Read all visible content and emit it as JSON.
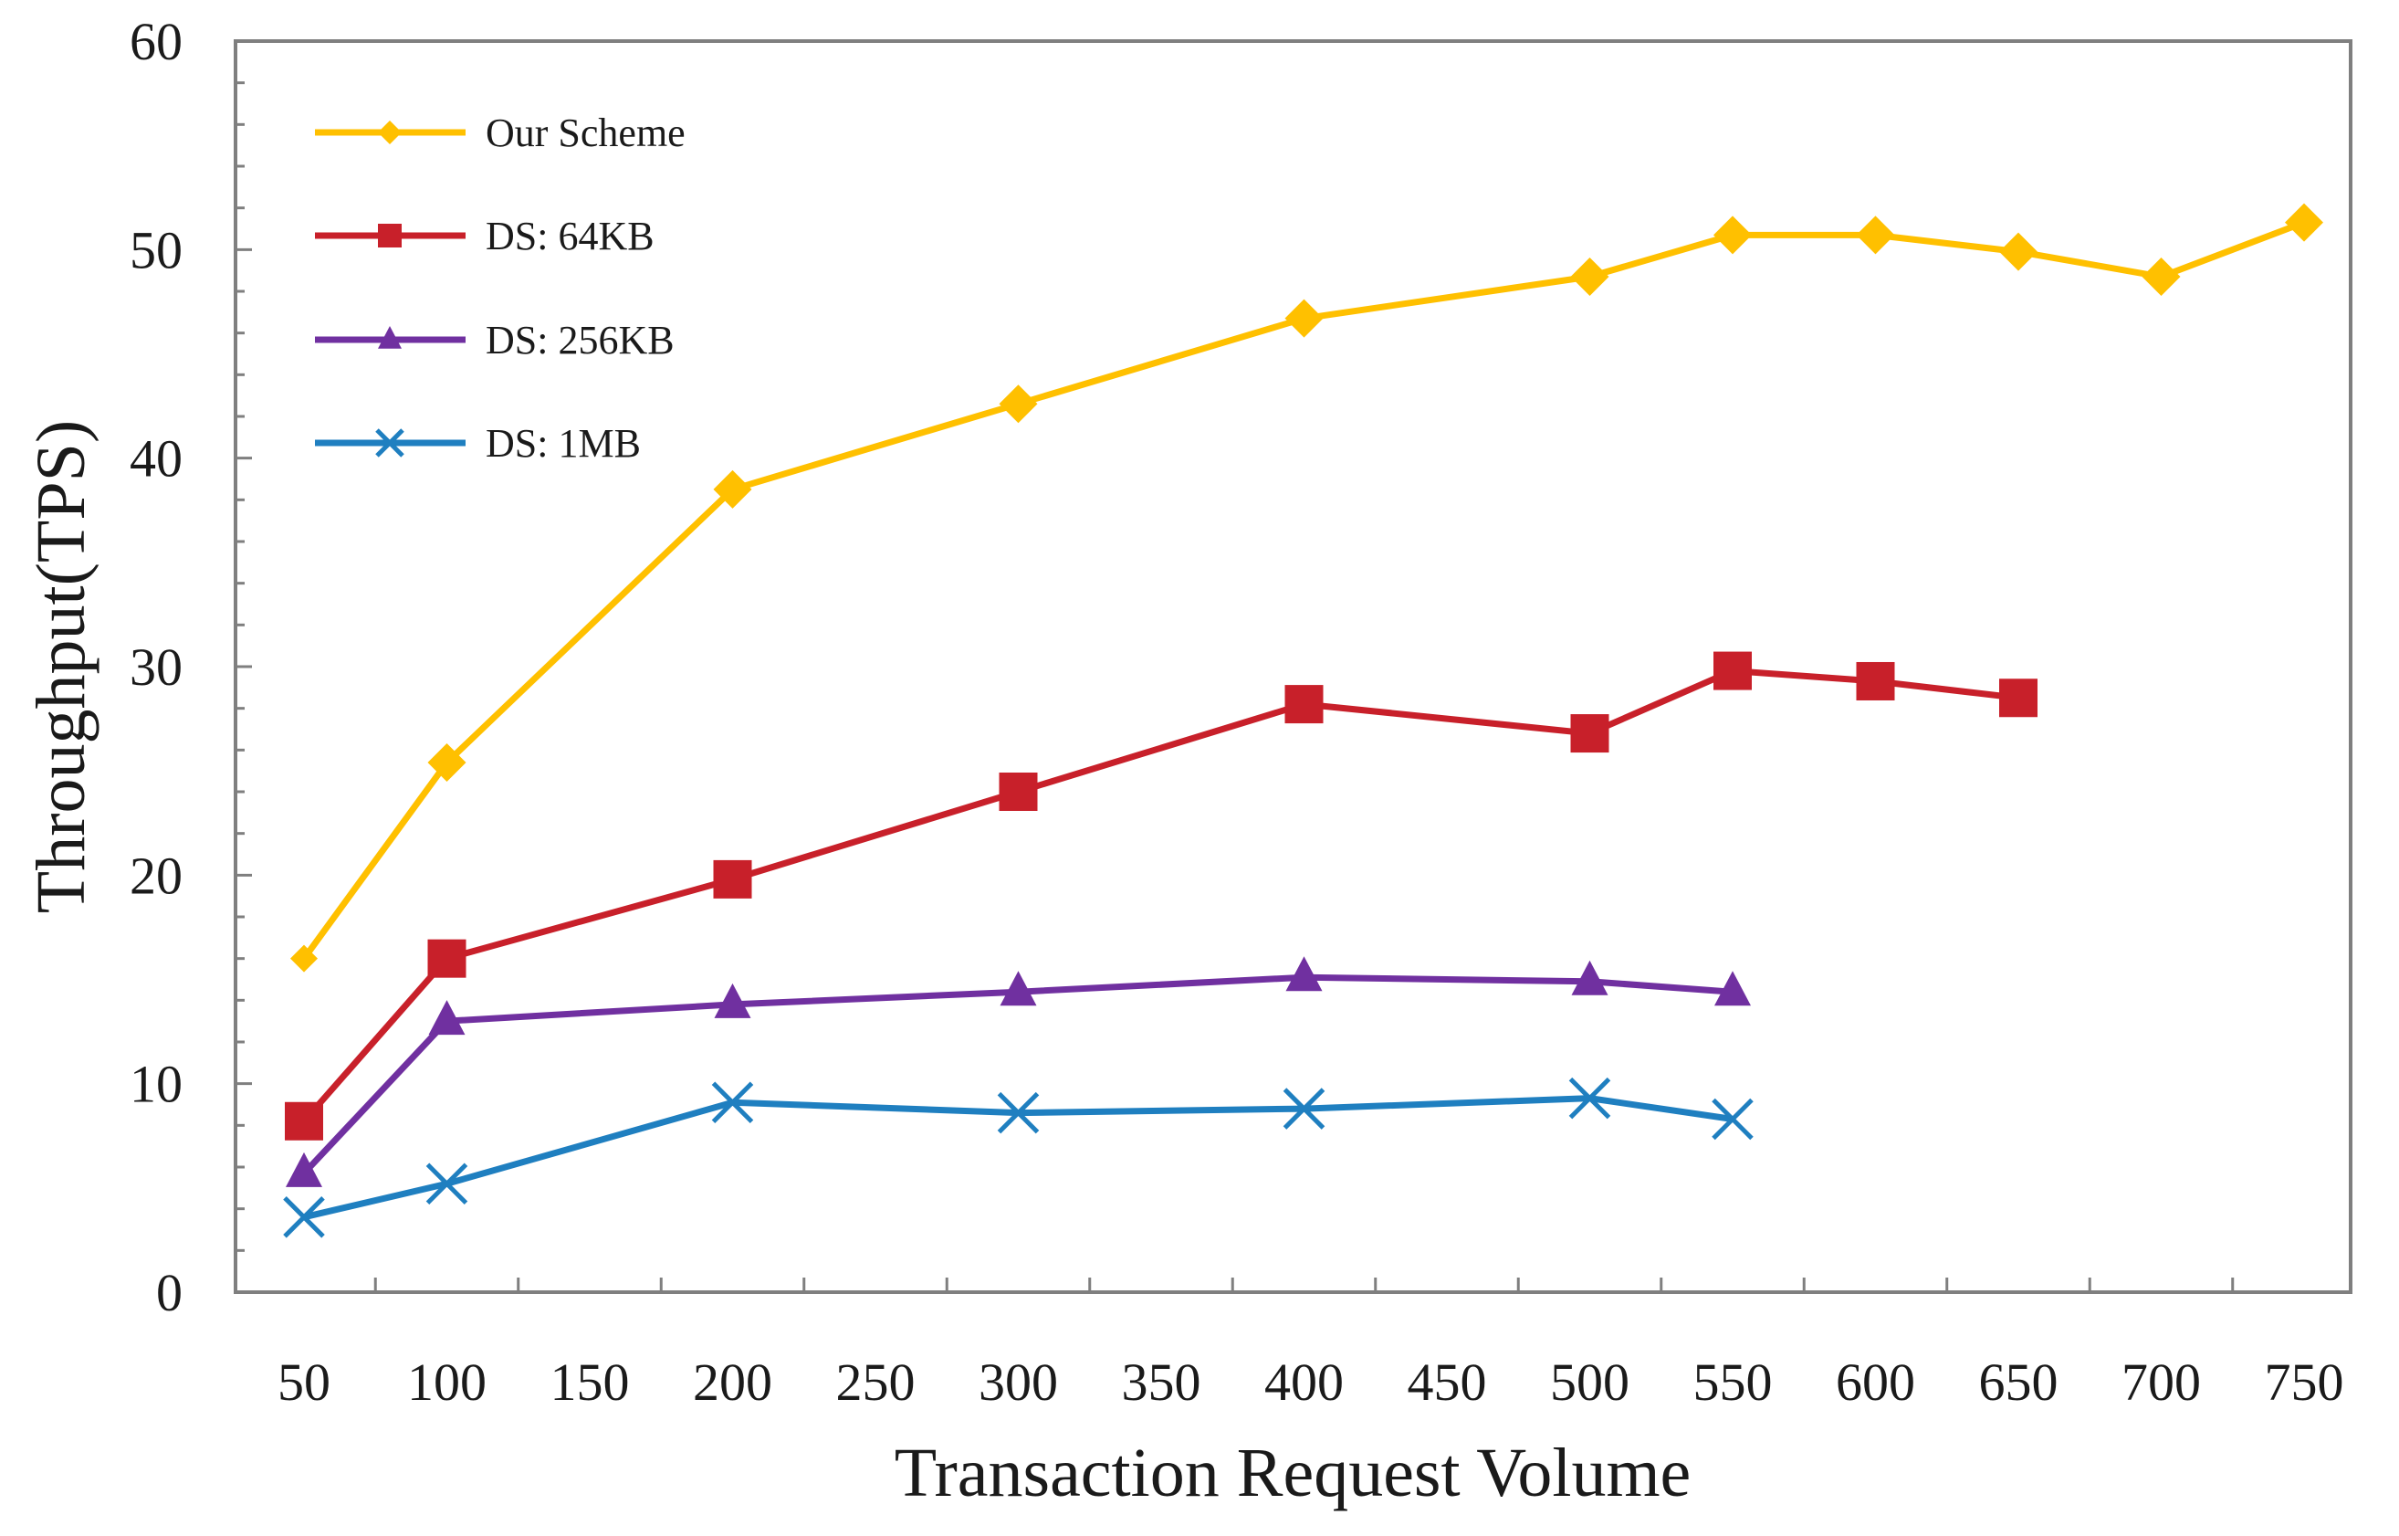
{
  "chart_data": {
    "type": "line",
    "title": "",
    "xlabel": "Transaction Request Volume",
    "ylabel": "Throughput(TPS)",
    "categories": [
      "50",
      "100",
      "150",
      "200",
      "250",
      "300",
      "350",
      "400",
      "450",
      "500",
      "550",
      "600",
      "650",
      "700",
      "750"
    ],
    "ylim": [
      0,
      60
    ],
    "yticks": [
      0,
      10,
      20,
      30,
      40,
      50,
      60
    ],
    "grid": false,
    "legend_position": "top-left",
    "series": [
      {
        "name": "Our Scheme",
        "color": "#FFC000",
        "marker": "diamond",
        "x": [
          "50",
          "100",
          "200",
          "300",
          "400",
          "500",
          "550",
          "600",
          "650",
          "700",
          "750"
        ],
        "values": [
          16,
          25.4,
          38.5,
          42.6,
          46.7,
          48.7,
          50.7,
          50.7,
          49.9,
          48.7,
          51.3
        ]
      },
      {
        "name": "DS: 64KB",
        "color": "#C8202A",
        "marker": "square",
        "x": [
          "50",
          "100",
          "200",
          "300",
          "400",
          "500",
          "550",
          "600",
          "650"
        ],
        "values": [
          8.2,
          16,
          19.8,
          24,
          28.2,
          26.8,
          29.8,
          29.3,
          28.5
        ]
      },
      {
        "name": "DS: 256KB",
        "color": "#7030A0",
        "marker": "triangle",
        "x": [
          "50",
          "100",
          "200",
          "300",
          "400",
          "500",
          "550"
        ],
        "values": [
          5.7,
          13,
          13.8,
          14.4,
          15.1,
          14.9,
          14.4
        ]
      },
      {
        "name": "DS: 1MB",
        "color": "#1F7FC0",
        "marker": "x",
        "x": [
          "50",
          "100",
          "200",
          "300",
          "400",
          "500",
          "550"
        ],
        "values": [
          3.6,
          5.2,
          9.1,
          8.6,
          8.8,
          9.3,
          8.3
        ]
      }
    ]
  }
}
